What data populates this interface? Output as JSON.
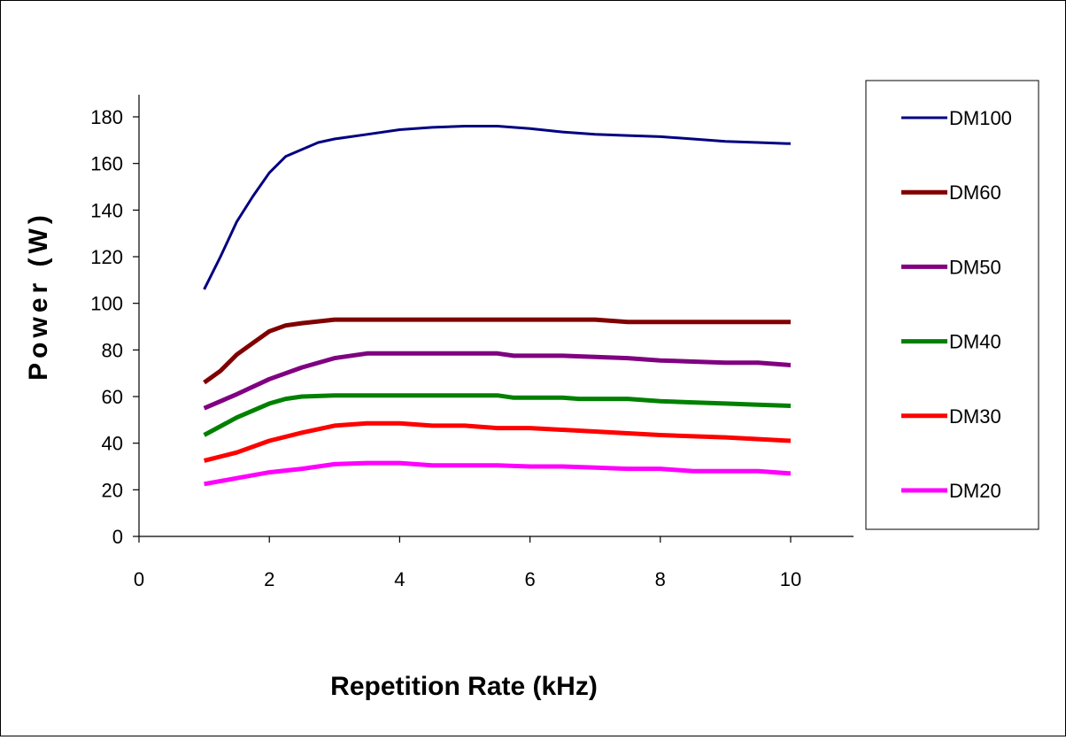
{
  "chart_data": {
    "type": "line",
    "xlabel": "Repetition Rate (kHz)",
    "ylabel": "Power (W)",
    "xlim": [
      0,
      11
    ],
    "ylim": [
      0,
      190
    ],
    "x_ticks": [
      0,
      2,
      4,
      6,
      8,
      10
    ],
    "y_ticks": [
      0,
      20,
      40,
      60,
      80,
      100,
      120,
      140,
      160,
      180
    ],
    "grid": false,
    "legend_position": "right",
    "series": [
      {
        "name": "DM100",
        "color": "#000080",
        "x": [
          1,
          1.25,
          1.5,
          1.75,
          2,
          2.25,
          2.5,
          2.75,
          3,
          3.5,
          4,
          4.5,
          5,
          5.5,
          6,
          6.5,
          7,
          7.5,
          8,
          8.5,
          9,
          9.5,
          10
        ],
        "y": [
          106,
          120,
          135,
          146,
          156,
          163,
          166,
          169,
          170.5,
          172.5,
          174.5,
          175.5,
          176,
          176,
          175,
          173.5,
          172.5,
          172,
          171.5,
          170.5,
          169.5,
          169,
          168.5
        ]
      },
      {
        "name": "DM60",
        "color": "#800000",
        "x": [
          1,
          1.25,
          1.5,
          1.75,
          2,
          2.25,
          2.5,
          3,
          3.5,
          4,
          4.5,
          5,
          5.5,
          6,
          6.5,
          7,
          7.5,
          8,
          9,
          10
        ],
        "y": [
          66,
          71,
          78,
          83,
          88,
          90.5,
          91.5,
          93,
          93,
          93,
          93,
          93,
          93,
          93,
          93,
          93,
          92,
          92,
          92,
          92
        ]
      },
      {
        "name": "DM50",
        "color": "#800080",
        "x": [
          1,
          1.5,
          2,
          2.5,
          3,
          3.5,
          4,
          5,
          5.5,
          5.75,
          6,
          6.5,
          7,
          7.5,
          8,
          8.5,
          9,
          9.5,
          10
        ],
        "y": [
          55,
          61,
          67.5,
          72.5,
          76.5,
          78.5,
          78.5,
          78.5,
          78.5,
          77.5,
          77.5,
          77.5,
          77,
          76.5,
          75.5,
          75,
          74.5,
          74.5,
          73.5
        ]
      },
      {
        "name": "DM40",
        "color": "#008000",
        "x": [
          1,
          1.5,
          2,
          2.25,
          2.5,
          3,
          4,
          5,
          5.5,
          5.75,
          6,
          6.5,
          6.75,
          7,
          7.5,
          8,
          8.5,
          9,
          9.5,
          10
        ],
        "y": [
          43.5,
          51,
          57,
          59,
          60,
          60.5,
          60.5,
          60.5,
          60.5,
          59.5,
          59.5,
          59.5,
          59,
          59,
          59,
          58,
          57.5,
          57,
          56.5,
          56
        ]
      },
      {
        "name": "DM30",
        "color": "#ff0000",
        "x": [
          1,
          1.5,
          2,
          2.5,
          3,
          3.5,
          4,
          4.5,
          5,
          5.5,
          6,
          7,
          8,
          9,
          10
        ],
        "y": [
          32.5,
          36,
          41,
          44.5,
          47.5,
          48.5,
          48.5,
          47.5,
          47.5,
          46.5,
          46.5,
          45,
          43.5,
          42.5,
          41
        ]
      },
      {
        "name": "DM20",
        "color": "#ff00ff",
        "x": [
          1,
          1.5,
          2,
          2.5,
          3,
          3.5,
          4,
          4.5,
          5,
          5.5,
          6,
          6.5,
          7,
          7.5,
          8,
          8.5,
          9,
          9.5,
          10
        ],
        "y": [
          22.5,
          25,
          27.5,
          29,
          31,
          31.5,
          31.5,
          30.5,
          30.5,
          30.5,
          30,
          30,
          29.5,
          29,
          29,
          28,
          28,
          28,
          27
        ]
      }
    ]
  }
}
